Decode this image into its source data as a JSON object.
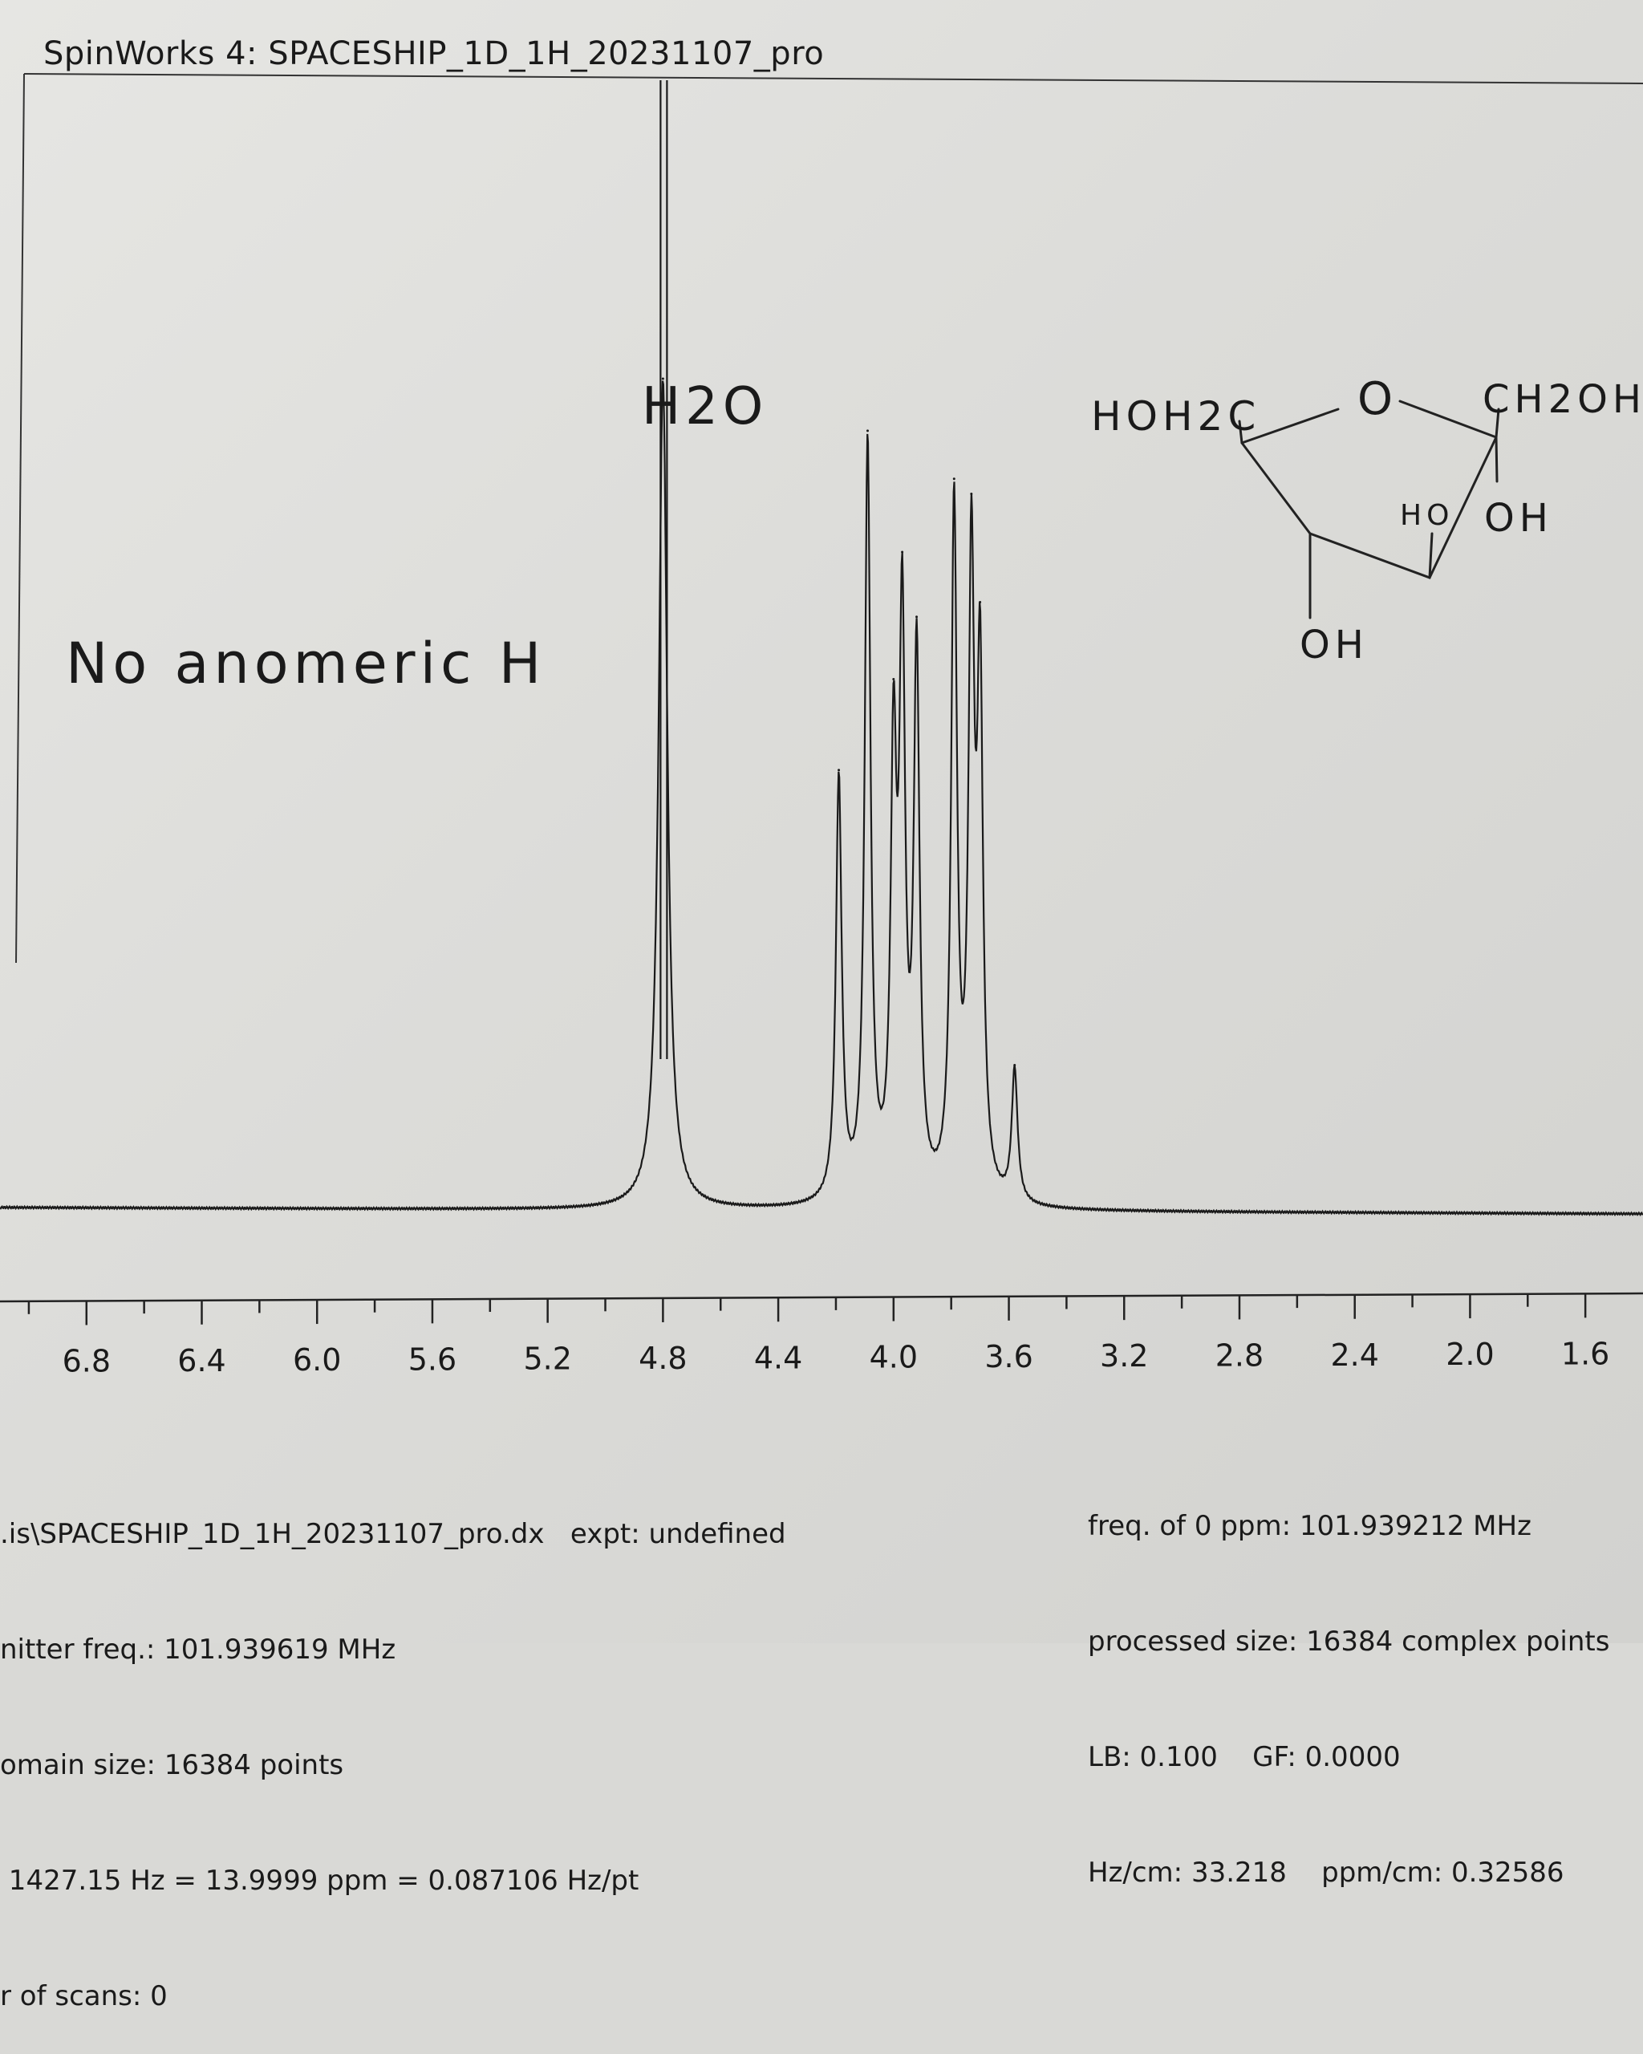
{
  "window_title": "SpinWorks 4: SPACESHIP_1D_1H_20231107_pro",
  "annotations": {
    "water_label": "H2O",
    "note": "No anomeric H",
    "structure_labels": [
      "HOH2C",
      "O",
      "CH2OH",
      "HO",
      "OH",
      "OH"
    ]
  },
  "chart_data": {
    "type": "line",
    "xlabel": "",
    "ylabel": "",
    "x_reversed": true,
    "xlim": [
      7.1,
      1.4
    ],
    "x_ticks": [
      6.8,
      6.4,
      6.0,
      5.6,
      5.2,
      4.8,
      4.4,
      4.0,
      3.6,
      3.2,
      2.8,
      2.4,
      2.0,
      1.6
    ],
    "x_tick_labels": [
      "6.8",
      "6.4",
      "6.0",
      "5.6",
      "5.2",
      "4.8",
      "4.4",
      "4.0",
      "3.6",
      "3.2",
      "2.8",
      "2.4",
      "2.0",
      "1.6"
    ],
    "grid": false,
    "series": [
      {
        "peaks": [
          {
            "ppm": 4.8,
            "height": 1.0,
            "label": "H2O"
          },
          {
            "ppm": 4.19,
            "height": 0.51
          },
          {
            "ppm": 4.09,
            "height": 0.91
          },
          {
            "ppm": 4.0,
            "height": 0.51
          },
          {
            "ppm": 3.97,
            "height": 0.67
          },
          {
            "ppm": 3.92,
            "height": 0.65
          },
          {
            "ppm": 3.79,
            "height": 0.83
          },
          {
            "ppm": 3.73,
            "height": 0.74
          },
          {
            "ppm": 3.7,
            "height": 0.61
          },
          {
            "ppm": 3.58,
            "height": 0.16
          }
        ]
      }
    ]
  },
  "info_left": [
    ".is\\SPACESHIP_1D_1H_20231107_pro.dx   expt: undefined",
    "nitter freq.: 101.939619 MHz",
    "omain size: 16384 points",
    " 1427.15 Hz = 13.9999 ppm = 0.087106 Hz/pt",
    "r of scans: 0"
  ],
  "info_right": [
    "freq. of 0 ppm: 101.939212 MHz",
    "processed size: 16384 complex points",
    "LB: 0.100    GF: 0.0000",
    "Hz/cm: 33.218    ppm/cm: 0.32586"
  ]
}
